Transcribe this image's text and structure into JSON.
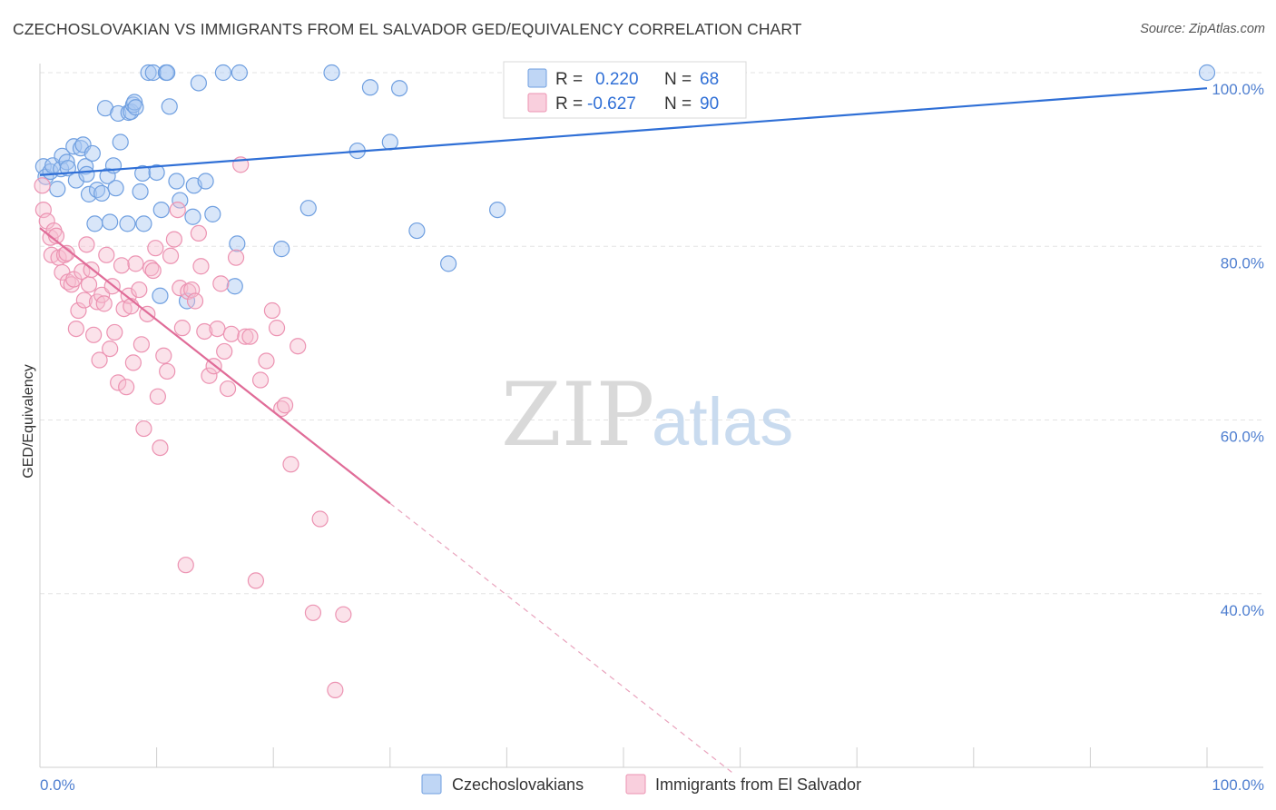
{
  "title": "CZECHOSLOVAKIAN VS IMMIGRANTS FROM EL SALVADOR GED/EQUIVALENCY CORRELATION CHART",
  "source": "Source: ZipAtlas.com",
  "watermark": {
    "zip": "ZIP",
    "atlas": "atlas"
  },
  "legend_top": {
    "rows": [
      {
        "r_label": "R =",
        "r_value": "0.220",
        "n_label": "N =",
        "n_value": "68",
        "color": "#a9c8f2",
        "edge": "#6f9fe0"
      },
      {
        "r_label": "R =",
        "r_value": "-0.627",
        "n_label": "N =",
        "n_value": "90",
        "color": "#f7bfd1",
        "edge": "#ec93b2"
      }
    ]
  },
  "legend_bottom": [
    {
      "label": "Czechoslovakians",
      "color": "#a9c8f2",
      "edge": "#6f9fe0"
    },
    {
      "label": "Immigrants from El Salvador",
      "color": "#f7bfd1",
      "edge": "#ec93b2"
    }
  ],
  "chart_data": {
    "type": "scatter",
    "title": "CZECHOSLOVAKIAN VS IMMIGRANTS FROM EL SALVADOR GED/EQUIVALENCY CORRELATION CHART",
    "xlabel": "",
    "ylabel": "GED/Equivalency",
    "xlim": [
      0,
      100
    ],
    "ylim": [
      20,
      100
    ],
    "x_tick_labels": [
      {
        "value": 0,
        "label": "0.0%"
      },
      {
        "value": 100,
        "label": "100.0%"
      }
    ],
    "y_tick_labels": [
      {
        "value": 40,
        "label": "40.0%"
      },
      {
        "value": 60,
        "label": "60.0%"
      },
      {
        "value": 80,
        "label": "80.0%"
      },
      {
        "value": 100,
        "label": "100.0%"
      }
    ],
    "grid": true,
    "legend_position": "top-center",
    "series": [
      {
        "name": "Czechoslovakians",
        "color": "#a9c8f2",
        "edge": "#6f9fe0",
        "trend": {
          "x": [
            0,
            100
          ],
          "y": [
            88.2,
            98.2
          ],
          "color": "#2f6fd6"
        },
        "points": [
          [
            0.3,
            89.2
          ],
          [
            0.5,
            88.0
          ],
          [
            0.9,
            88.6
          ],
          [
            1.1,
            89.3
          ],
          [
            1.5,
            86.6
          ],
          [
            1.8,
            88.9
          ],
          [
            1.9,
            90.4
          ],
          [
            2.3,
            89.7
          ],
          [
            2.4,
            89.0
          ],
          [
            2.9,
            91.5
          ],
          [
            3.1,
            87.6
          ],
          [
            3.5,
            91.3
          ],
          [
            3.7,
            91.7
          ],
          [
            3.9,
            89.2
          ],
          [
            4.0,
            88.3
          ],
          [
            4.2,
            86.0
          ],
          [
            4.5,
            90.7
          ],
          [
            4.7,
            82.6
          ],
          [
            4.9,
            86.5
          ],
          [
            5.3,
            86.1
          ],
          [
            5.6,
            95.9
          ],
          [
            5.8,
            88.1
          ],
          [
            6.0,
            82.8
          ],
          [
            6.3,
            89.3
          ],
          [
            6.5,
            86.7
          ],
          [
            6.7,
            95.3
          ],
          [
            6.9,
            92.0
          ],
          [
            7.5,
            82.6
          ],
          [
            7.6,
            95.4
          ],
          [
            7.8,
            95.5
          ],
          [
            8.0,
            96.3
          ],
          [
            8.1,
            96.6
          ],
          [
            8.2,
            96.0
          ],
          [
            8.6,
            86.3
          ],
          [
            8.8,
            88.4
          ],
          [
            8.9,
            82.6
          ],
          [
            9.3,
            100
          ],
          [
            9.7,
            100
          ],
          [
            10.0,
            88.5
          ],
          [
            10.3,
            74.3
          ],
          [
            10.4,
            84.2
          ],
          [
            10.8,
            100
          ],
          [
            10.9,
            100
          ],
          [
            11.1,
            96.1
          ],
          [
            11.7,
            87.5
          ],
          [
            12.0,
            85.3
          ],
          [
            12.6,
            73.7
          ],
          [
            13.1,
            83.4
          ],
          [
            13.2,
            87.0
          ],
          [
            13.6,
            98.8
          ],
          [
            14.2,
            87.5
          ],
          [
            14.8,
            83.7
          ],
          [
            15.7,
            100
          ],
          [
            16.7,
            75.4
          ],
          [
            16.9,
            80.3
          ],
          [
            17.1,
            100
          ],
          [
            20.7,
            79.7
          ],
          [
            23.0,
            84.4
          ],
          [
            25.0,
            100
          ],
          [
            27.2,
            91.0
          ],
          [
            28.3,
            98.3
          ],
          [
            30.0,
            92.0
          ],
          [
            30.8,
            98.2
          ],
          [
            32.3,
            81.8
          ],
          [
            35.0,
            78.0
          ],
          [
            39.2,
            84.2
          ],
          [
            100,
            100
          ]
        ]
      },
      {
        "name": "Immigrants from El Salvador",
        "color": "#f7bfd1",
        "edge": "#ec93b2",
        "trend": {
          "x": [
            0,
            30
          ],
          "y": [
            82.1,
            50.4
          ],
          "color": "#e06c98"
        },
        "trend_extension": {
          "x": [
            30,
            59.5
          ],
          "y": [
            50.4,
            19.2
          ],
          "color": "#e9a3bd"
        },
        "points": [
          [
            0.2,
            87.0
          ],
          [
            0.3,
            84.2
          ],
          [
            0.6,
            82.9
          ],
          [
            0.9,
            81.0
          ],
          [
            1.0,
            79.0
          ],
          [
            1.2,
            81.8
          ],
          [
            1.4,
            81.2
          ],
          [
            1.6,
            78.7
          ],
          [
            1.9,
            77.0
          ],
          [
            2.1,
            79.0
          ],
          [
            2.3,
            79.2
          ],
          [
            2.4,
            75.9
          ],
          [
            2.7,
            75.6
          ],
          [
            2.9,
            76.2
          ],
          [
            3.1,
            70.5
          ],
          [
            3.3,
            72.6
          ],
          [
            3.6,
            77.1
          ],
          [
            3.8,
            73.8
          ],
          [
            4.0,
            80.2
          ],
          [
            4.2,
            75.6
          ],
          [
            4.4,
            77.3
          ],
          [
            4.6,
            69.8
          ],
          [
            4.9,
            73.6
          ],
          [
            5.1,
            66.9
          ],
          [
            5.3,
            74.4
          ],
          [
            5.5,
            73.4
          ],
          [
            5.7,
            79.0
          ],
          [
            6.0,
            68.2
          ],
          [
            6.2,
            75.4
          ],
          [
            6.4,
            70.1
          ],
          [
            6.7,
            64.3
          ],
          [
            7.0,
            77.8
          ],
          [
            7.2,
            72.8
          ],
          [
            7.4,
            63.8
          ],
          [
            7.6,
            74.3
          ],
          [
            7.8,
            73.1
          ],
          [
            8.0,
            66.6
          ],
          [
            8.2,
            78.0
          ],
          [
            8.5,
            75.0
          ],
          [
            8.7,
            68.7
          ],
          [
            8.9,
            59.0
          ],
          [
            9.2,
            72.2
          ],
          [
            9.5,
            77.5
          ],
          [
            9.7,
            77.2
          ],
          [
            9.9,
            79.8
          ],
          [
            10.1,
            62.7
          ],
          [
            10.3,
            56.8
          ],
          [
            10.6,
            67.4
          ],
          [
            10.9,
            65.6
          ],
          [
            11.2,
            78.9
          ],
          [
            11.5,
            80.8
          ],
          [
            11.8,
            84.2
          ],
          [
            12.0,
            75.2
          ],
          [
            12.2,
            70.6
          ],
          [
            12.5,
            43.3
          ],
          [
            12.7,
            74.8
          ],
          [
            13.0,
            75.0
          ],
          [
            13.3,
            73.7
          ],
          [
            13.6,
            81.5
          ],
          [
            13.8,
            77.7
          ],
          [
            14.1,
            70.2
          ],
          [
            14.5,
            65.1
          ],
          [
            14.9,
            66.2
          ],
          [
            15.2,
            70.5
          ],
          [
            15.5,
            75.7
          ],
          [
            15.8,
            67.9
          ],
          [
            16.1,
            63.6
          ],
          [
            16.4,
            69.9
          ],
          [
            16.8,
            78.7
          ],
          [
            17.2,
            89.4
          ],
          [
            17.6,
            69.6
          ],
          [
            18.0,
            69.6
          ],
          [
            18.5,
            41.5
          ],
          [
            18.9,
            64.6
          ],
          [
            19.4,
            66.8
          ],
          [
            19.9,
            72.6
          ],
          [
            20.3,
            70.6
          ],
          [
            20.7,
            61.3
          ],
          [
            21.0,
            61.7
          ],
          [
            21.5,
            54.9
          ],
          [
            22.1,
            68.5
          ],
          [
            23.4,
            37.8
          ],
          [
            24.0,
            48.6
          ],
          [
            25.3,
            28.9
          ],
          [
            26.0,
            37.6
          ]
        ]
      }
    ]
  }
}
